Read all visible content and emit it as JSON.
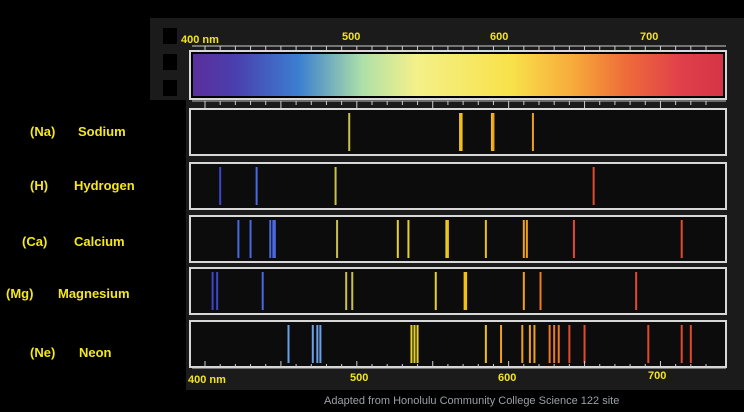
{
  "top_axis": {
    "tick_labels": [
      "400 nm",
      "500",
      "600",
      "700"
    ],
    "tick_values": [
      400,
      500,
      600,
      700
    ]
  },
  "bottom_axis": {
    "tick_labels": [
      "400 nm",
      "500",
      "600",
      "700"
    ],
    "tick_values": [
      400,
      500,
      600,
      700
    ]
  },
  "spectra": [
    {
      "symbol": "(Na)",
      "name": "Sodium",
      "lines_nm": [
        495,
        568,
        569,
        589,
        590,
        616
      ]
    },
    {
      "symbol": "(H)",
      "name": "Hydrogen",
      "lines_nm": [
        410,
        434,
        486,
        656
      ]
    },
    {
      "symbol": "(Ca)",
      "name": "Calcium",
      "lines_nm": [
        422,
        430,
        443,
        445,
        446,
        487,
        527,
        534,
        559,
        560,
        585,
        610,
        612,
        643,
        714
      ]
    },
    {
      "symbol": "(Mg)",
      "name": "Magnesium",
      "lines_nm": [
        405,
        408,
        438,
        493,
        497,
        552,
        571,
        572,
        610,
        621,
        684
      ]
    },
    {
      "symbol": "(Ne)",
      "name": "Neon",
      "lines_nm": [
        455,
        471,
        474,
        476,
        536,
        538,
        540,
        585,
        595,
        609,
        614,
        617,
        627,
        630,
        633,
        640,
        650,
        692,
        714,
        720
      ]
    }
  ],
  "credit": "Adapted from Honolulu Community College Science 122 site"
}
